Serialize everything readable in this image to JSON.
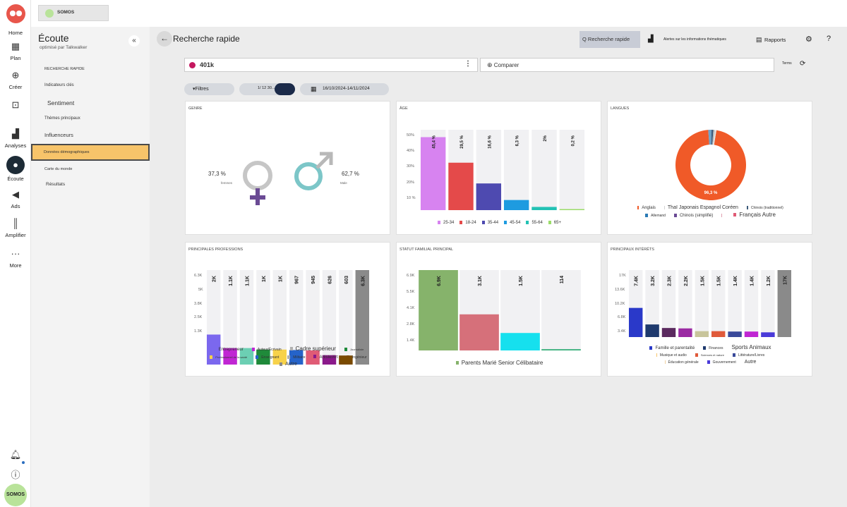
{
  "rail": {
    "items": [
      {
        "label": "Home",
        "icon": "home-icon"
      },
      {
        "label": "Plan",
        "icon": "calendar-icon"
      },
      {
        "label": "Créer",
        "icon": "plus-circle-icon"
      },
      {
        "label": "",
        "icon": "inbox-icon"
      },
      {
        "label": "Analyses",
        "icon": "bar-chart-icon"
      },
      {
        "label": "Écoute",
        "icon": "lightbulb-icon"
      },
      {
        "label": "Ads",
        "icon": "megaphone-icon"
      },
      {
        "label": "Amplifier",
        "icon": "signal-icon"
      },
      {
        "label": "More",
        "icon": "more-icon"
      }
    ],
    "avatar": "SOMOS"
  },
  "topbar": {
    "brand": "SOMOS"
  },
  "sidebar": {
    "title": "Écoute",
    "subtitle": "optimisé par Talkwalker",
    "items": [
      {
        "label": "RECHERCHE RAPIDE"
      },
      {
        "label": "Indicateurs clés"
      },
      {
        "label": "Sentiment"
      },
      {
        "label": "Thèmes principaux"
      },
      {
        "label": "Influenceurs"
      },
      {
        "label": "Données démographiques"
      },
      {
        "label": "Carte du monde"
      },
      {
        "label": "Résultats"
      }
    ]
  },
  "header": {
    "title": "Recherche rapide",
    "quick_search": "Q Recherche rapide",
    "alerts": "Alertes sur les informations thématiques",
    "reports": "Rapports"
  },
  "search": {
    "query": "401k",
    "compare": "Comparer",
    "terms": "Terms"
  },
  "filters": {
    "filters": "Filtres",
    "period_short": "1/ 12 30...",
    "date_range": "16/10/2024-14/11/2024"
  },
  "gender": {
    "title": "GENRE",
    "female_pct": "37,3 %",
    "female_label": "femmes",
    "male_pct": "62,7 %",
    "male_label": "Male"
  },
  "age": {
    "title": "ÂGE",
    "yticks": [
      "50%",
      "40%",
      "30%",
      "20%",
      "10 %"
    ]
  },
  "languages": {
    "title": "LANGUES",
    "center_label": "96,3 %",
    "legend_row1": [
      "Anglais",
      "Thaï Japonais Espagnol Coréen",
      "Chinois (traditionnel)"
    ],
    "legend_row2": [
      "Allemand",
      "Chinois (simplifié)",
      "",
      "Français Autre"
    ]
  },
  "professions": {
    "title": "PRINCIPALES PROFESSIONS",
    "yticks": [
      "6.3K",
      "5K",
      "3.8K",
      "2.5K",
      "1.3K"
    ],
    "legend_row1": [
      "Entrepreneur",
      "Auteur/Écrivain",
      "Cadre supérieur",
      "Journaliste"
    ],
    "legend_row2": [
      "Professionnel de la santé",
      "Enseignant",
      "Militaire",
      "Artiste/Art",
      "Ingénieur"
    ],
    "legend_row3": [
      "Autre"
    ]
  },
  "family": {
    "title": "STATUT FAMILIAL PRINCIPAL",
    "yticks": [
      "6.9K",
      "5.5K",
      "4.1K",
      "2.8K",
      "1.4K"
    ],
    "legend": "Parents Marié Senior Célibataire"
  },
  "interests": {
    "title": "PRINCIPAUX INTÉRÊTS",
    "yticks": [
      "17K",
      "13.6K",
      "10.2K",
      "6.8K",
      "3.4K"
    ],
    "legend_row1": [
      "Famille et parentalité",
      "Finances",
      "Sports Animaux"
    ],
    "legend_row2": [
      "Musique et audio",
      "Sciences et nature",
      "Littérature/Livres"
    ],
    "legend_row3": [
      "Éducation générale",
      "Gouvernement",
      "Autre"
    ]
  },
  "chart_data": [
    {
      "type": "bar",
      "title": "ÂGE",
      "categories": [
        "25-34",
        "18-24",
        "35-44",
        "45-54",
        "55-64",
        "65+"
      ],
      "values": [
        45.4,
        29.5,
        16.6,
        6.3,
        2,
        0.2
      ],
      "labels": [
        "45,4 %",
        "29,5 %",
        "16,6 %",
        "6,3 %",
        "2%",
        "0,2 %"
      ],
      "colors": [
        "#d783f0",
        "#e44a4a",
        "#4e4ab0",
        "#1e9be0",
        "#23c2b4",
        "#9bdc6a"
      ],
      "ylim": [
        0,
        50
      ]
    },
    {
      "type": "pie",
      "title": "LANGUES",
      "values": [
        96.3,
        1.5,
        0.8,
        0.5,
        0.5,
        0.4
      ],
      "colors": [
        "#f05a28",
        "#6fa3c8",
        "#3c5a7a",
        "#b0b0b0",
        "#d3d3d3",
        "#e8e8e8"
      ]
    },
    {
      "type": "bar",
      "title": "PRINCIPALES PROFESSIONS",
      "values": [
        2000,
        1100,
        1100,
        1000,
        1000,
        967,
        945,
        626,
        603,
        6300
      ],
      "labels": [
        "2K",
        "1.1K",
        "1.1K",
        "1K",
        "1K",
        "967",
        "945",
        "626",
        "603",
        "6.3K"
      ],
      "colors": [
        "#7b68ee",
        "#c026d3",
        "#6ccfb3",
        "#1f8a3a",
        "#f7d24a",
        "#2563c9",
        "#e05b75",
        "#8b1a8b",
        "#7a4a00",
        "#8a8a8a"
      ],
      "ylim": [
        0,
        6300
      ]
    },
    {
      "type": "bar",
      "title": "STATUT FAMILIAL PRINCIPAL",
      "values": [
        6900,
        3100,
        1500,
        114
      ],
      "labels": [
        "6.9K",
        "3.1K",
        "1.5K",
        "114"
      ],
      "colors": [
        "#86b36b",
        "#d6707a",
        "#16e0ee",
        "#3fb27f"
      ],
      "ylim": [
        0,
        6900
      ]
    },
    {
      "type": "bar",
      "title": "PRINCIPAUX INTÉRÊTS",
      "values": [
        7400,
        3200,
        2300,
        2200,
        1500,
        1500,
        1400,
        1400,
        1200,
        17000
      ],
      "labels": [
        "7.4K",
        "3.2K",
        "2.3K",
        "2.2K",
        "1.5K",
        "1.5K",
        "1.4K",
        "1.4K",
        "1.2K",
        "17K"
      ],
      "colors": [
        "#2a39c9",
        "#1f3a6e",
        "#5b2a5f",
        "#9b2aa3",
        "#c8c59b",
        "#e05a3a",
        "#3a4a9a",
        "#c026d3",
        "#4a3ad9",
        "#8a8a8a"
      ],
      "ylim": [
        0,
        17000
      ]
    }
  ]
}
